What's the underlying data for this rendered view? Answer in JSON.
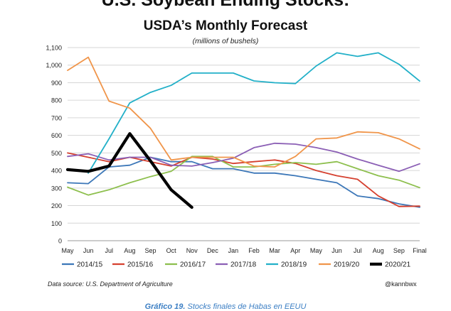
{
  "chart_data": {
    "type": "line",
    "title": "U.S. Soybean Ending Stocks:",
    "subtitle": "USDA’s Monthly Forecast",
    "unit_note": "(millions of bushels)",
    "ylim": [
      0,
      1100
    ],
    "y_ticks": [
      "0",
      "100",
      "200",
      "300",
      "400",
      "500",
      "600",
      "700",
      "800",
      "900",
      "1,000",
      "1,100"
    ],
    "categories": [
      "May",
      "Jun",
      "Jul",
      "Aug",
      "Sep",
      "Oct",
      "Nov",
      "Dec",
      "Jan",
      "Feb",
      "Mar",
      "Apr",
      "May",
      "Jun",
      "Jul",
      "Aug",
      "Sep",
      "Final"
    ],
    "grid": true,
    "legend_position": "bottom",
    "series": [
      {
        "name": "2014/15",
        "color": "#3c77b8",
        "values": [
          330,
          325,
          420,
          430,
          475,
          450,
          450,
          410,
          410,
          385,
          385,
          370,
          350,
          330,
          255,
          240,
          210,
          191
        ]
      },
      {
        "name": "2015/16",
        "color": "#d5402f",
        "values": [
          500,
          475,
          450,
          475,
          450,
          425,
          475,
          465,
          440,
          450,
          460,
          440,
          400,
          370,
          350,
          255,
          195,
          197
        ]
      },
      {
        "name": "2016/17",
        "color": "#8dbf4d",
        "values": [
          305,
          260,
          290,
          330,
          365,
          395,
          480,
          480,
          420,
          420,
          435,
          445,
          435,
          450,
          410,
          370,
          345,
          302
        ]
      },
      {
        "name": "2017/18",
        "color": "#8b5fb5",
        "values": [
          480,
          495,
          460,
          475,
          475,
          430,
          425,
          445,
          470,
          530,
          555,
          550,
          530,
          505,
          465,
          430,
          395,
          438
        ]
      },
      {
        "name": "2018/19",
        "color": "#22b0c8",
        "values": [
          null,
          385,
          580,
          785,
          845,
          885,
          955,
          955,
          955,
          910,
          900,
          895,
          995,
          1070,
          1050,
          1070,
          1005,
          909
        ]
      },
      {
        "name": "2019/20",
        "color": "#f0954a",
        "values": [
          970,
          1045,
          795,
          755,
          640,
          460,
          475,
          475,
          475,
          425,
          420,
          480,
          580,
          585,
          620,
          615,
          580,
          523
        ]
      },
      {
        "name": "2020/21",
        "color": "#000000",
        "values": [
          405,
          395,
          425,
          610,
          455,
          290,
          190,
          null,
          null,
          null,
          null,
          null,
          null,
          null,
          null,
          null,
          null,
          null
        ]
      }
    ]
  },
  "footer": {
    "source": "Data source: U.S. Department of Agriculture",
    "credit": "@kannbwx"
  },
  "caption": {
    "label": "Gráfico 19.",
    "text": "Stocks finales de Habas en EEUU"
  }
}
